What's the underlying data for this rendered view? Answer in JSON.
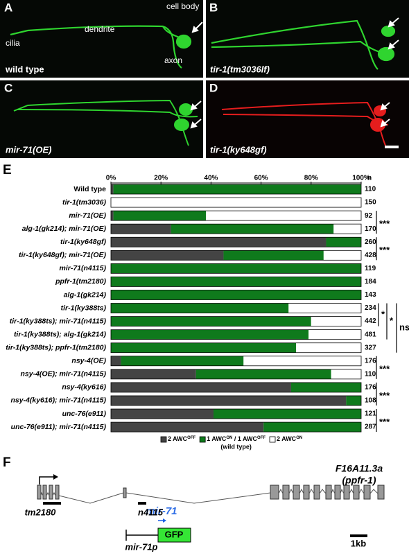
{
  "panels": [
    {
      "label": "A",
      "texts": [
        "cilia",
        "dendrite",
        "cell body",
        "axon"
      ],
      "caption": "wild type"
    },
    {
      "label": "B",
      "caption": "tir-1(tm3036lf)"
    },
    {
      "label": "C",
      "caption": "mir-71(OE)"
    },
    {
      "label": "D",
      "caption": "tir-1(ky648gf)"
    }
  ],
  "chart_data": {
    "type": "stacked-bar-horizontal",
    "panel_label": "E",
    "categories": [
      "Wild type",
      "tir-1(tm3036)",
      "mir-71(OE)",
      "alg-1(gk214); mir-71(OE)",
      "tir-1(ky648gf)",
      "tir-1(ky648gf); mir-71(OE)",
      "mir-71(n4115)",
      "ppfr-1(tm2180)",
      "alg-1(gk214)",
      "tir-1(ky388ts)",
      "tir-1(ky388ts); mir-71(n4115)",
      "tir-1(ky388ts); alg-1(gk214)",
      "tir-1(ky388ts); ppfr-1(tm2180)",
      "nsy-4(OE)",
      "nsy-4(OE); mir-71(n4115)",
      "nsy-4(ky616)",
      "nsy-4(ky616); mir-71(n4115)",
      "unc-76(e911)",
      "unc-76(e911); mir-71(n4115)"
    ],
    "series": [
      {
        "label_parts": [
          "2 AWC",
          "OFF"
        ],
        "color": "#444444",
        "values": [
          1,
          0,
          1,
          24,
          86,
          45,
          0,
          0,
          0,
          0,
          0,
          0,
          0,
          4,
          34,
          72,
          94,
          41,
          61
        ]
      },
      {
        "label_parts": [
          "1 AWC",
          "ON",
          " / 1 AWC",
          "OFF"
        ],
        "note": "(wild type)",
        "color": "#0f7a1c",
        "values": [
          99,
          0,
          37,
          65,
          14,
          40,
          100,
          100,
          100,
          71,
          80,
          79,
          74,
          49,
          54,
          28,
          6,
          59,
          39
        ]
      },
      {
        "label_parts": [
          "2 AWC",
          "ON"
        ],
        "color": "#ffffff",
        "values": [
          0,
          100,
          62,
          11,
          0,
          15,
          0,
          0,
          0,
          29,
          20,
          21,
          26,
          47,
          12,
          0,
          0,
          0,
          0
        ]
      }
    ],
    "n_header": "n",
    "n": [
      110,
      150,
      92,
      170,
      260,
      428,
      119,
      184,
      143,
      234,
      442,
      481,
      327,
      176,
      110,
      176,
      108,
      121,
      287
    ],
    "xlim": [
      0,
      100
    ],
    "xticks": [
      {
        "value": 0,
        "label": "0%"
      },
      {
        "value": 20,
        "label": "20%"
      },
      {
        "value": 40,
        "label": "40%"
      },
      {
        "value": 60,
        "label": "60%"
      },
      {
        "value": 80,
        "label": "80%"
      },
      {
        "value": 100,
        "label": "100%"
      }
    ],
    "significance": [
      "***",
      "***",
      "*",
      "*",
      "ns",
      "***",
      "***",
      "***"
    ]
  },
  "gene_diagram": {
    "label": "F",
    "mirna": "mir-71",
    "gene": "F16A11.3a",
    "gene_alias": "(ppfr-1)",
    "alleles": [
      "tm2180",
      "n4115"
    ],
    "scale": "1kb",
    "reporter": "GFP",
    "promoter": "mir-71p"
  }
}
